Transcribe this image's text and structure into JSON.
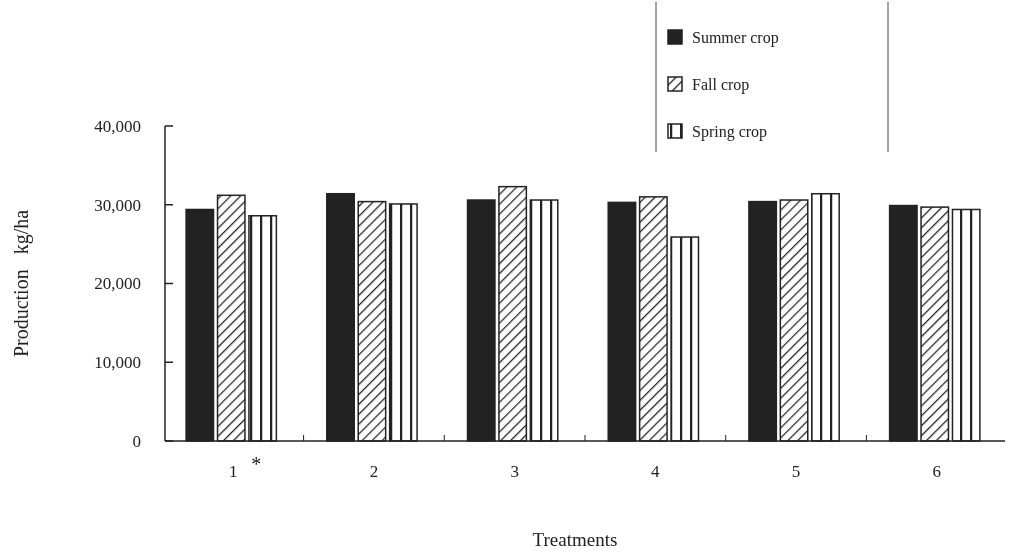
{
  "chart_data": {
    "type": "bar",
    "xlabel": "Treatments",
    "ylabel": "Production   kg/ha",
    "categories": [
      "1",
      "2",
      "3",
      "4",
      "5",
      "6"
    ],
    "series": [
      {
        "name": "Summer crop",
        "color": "#222222",
        "values": [
          29400,
          31400,
          30600,
          30300,
          30400,
          29900
        ]
      },
      {
        "name": "Fall crop",
        "color": "#222222",
        "values": [
          31200,
          30400,
          32300,
          31000,
          30600,
          29700
        ]
      },
      {
        "name": "Spring crop",
        "color": "#222222",
        "values": [
          28600,
          30100,
          30600,
          25900,
          31400,
          29400
        ]
      }
    ],
    "ylim": [
      0,
      40000
    ],
    "yticks": [
      {
        "value": 0,
        "label": "0"
      },
      {
        "value": 10000,
        "label": "10,000"
      },
      {
        "value": 20000,
        "label": "20,000"
      },
      {
        "value": 30000,
        "label": "30,000"
      },
      {
        "value": 40000,
        "label": "40,000"
      }
    ],
    "annotations": [
      "*"
    ],
    "legend": "top right",
    "grid": false
  }
}
